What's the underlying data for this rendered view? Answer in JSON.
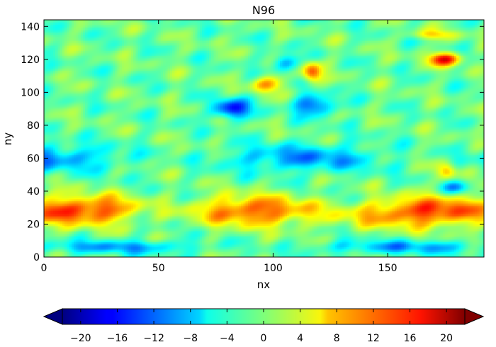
{
  "chart_data": {
    "type": "heatmap",
    "title": "N96",
    "xlabel": "nx",
    "ylabel": "ny",
    "xlim": [
      0,
      192
    ],
    "ylim": [
      0,
      144
    ],
    "x_ticks": [
      "0",
      "50",
      "100",
      "150"
    ],
    "y_ticks": [
      "0",
      "20",
      "40",
      "60",
      "80",
      "100",
      "120",
      "140"
    ],
    "grid": false,
    "colormap": "jet",
    "colorbar": {
      "orientation": "horizontal",
      "placement": "bottom",
      "range": [
        -22,
        22
      ],
      "extend": "both",
      "ticks": [
        "−20",
        "−16",
        "−12",
        "−8",
        "−4",
        "0",
        "4",
        "8",
        "12",
        "16",
        "20"
      ]
    },
    "features": [
      {
        "kind": "positive band",
        "x_range": [
          0,
          192
        ],
        "y_range": [
          15,
          45
        ],
        "peak": 15
      },
      {
        "kind": "negative band",
        "x_range": [
          10,
          150
        ],
        "y_range": [
          50,
          70
        ],
        "peak": -9
      },
      {
        "kind": "negative patch",
        "x_range": [
          70,
          130
        ],
        "y_range": [
          80,
          105
        ],
        "peak": -16
      },
      {
        "kind": "positive patch",
        "x_range": [
          110,
          125
        ],
        "y_range": [
          100,
          120
        ],
        "peak": 14
      },
      {
        "kind": "positive patch",
        "x_range": [
          160,
          192
        ],
        "y_range": [
          110,
          135
        ],
        "peak": 17
      },
      {
        "kind": "negative strip",
        "x_range": [
          0,
          192
        ],
        "y_range": [
          0,
          18
        ],
        "peak": -8
      }
    ]
  }
}
